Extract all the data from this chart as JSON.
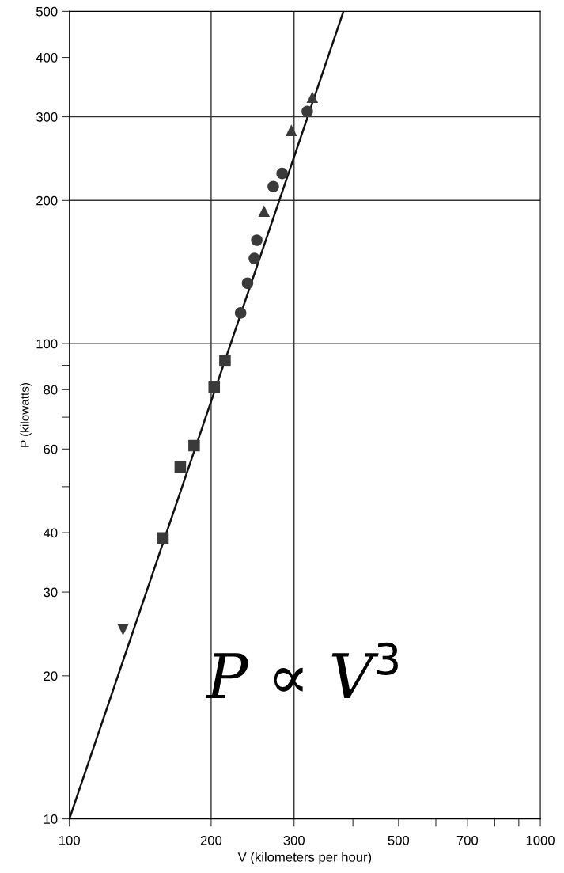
{
  "chart_data": {
    "type": "scatter",
    "xlabel": "V (kilometers per hour)",
    "ylabel": "P (kilowatts)",
    "log": "xy",
    "grid": false,
    "xlim": [
      100,
      1000
    ],
    "xticks": [
      100,
      200,
      300,
      {
        "value": 400,
        "label": null
      },
      500,
      {
        "value": 600,
        "label": null
      },
      700,
      {
        "value": 800,
        "label": null
      },
      {
        "value": 900,
        "label": null
      },
      1000
    ],
    "ylim": [
      10,
      500
    ],
    "yticks": [
      10,
      20,
      30,
      40,
      {
        "value": 50,
        "label": null
      },
      60,
      {
        "value": 70,
        "label": null
      },
      80,
      {
        "value": 90,
        "label": null
      },
      100,
      200,
      300,
      400,
      500
    ],
    "ref_lines": [
      {
        "axis": "x",
        "value": 200,
        "color": "#333333"
      },
      {
        "axis": "x",
        "value": 300,
        "color": "#333333"
      },
      {
        "axis": "y",
        "value": 100,
        "color": "#333333"
      },
      {
        "axis": "y",
        "value": 200,
        "color": "#333333"
      },
      {
        "axis": "y",
        "value": 300,
        "color": "#333333"
      }
    ],
    "annotations": [
      "P ∝ V$^{3}$"
    ],
    "series": [
      {
        "type": "line",
        "color": "#111111",
        "marker": "none",
        "line_style": "solid",
        "x": [
          100,
          382
        ],
        "values": [
          10,
          500
        ]
      },
      {
        "marker": "triangle",
        "color": "#3a3a3a",
        "x": [
          328,
          296,
          259
        ],
        "values": [
          330,
          281,
          190
        ]
      },
      {
        "marker": "circle",
        "color": "#3a3a3a",
        "x": [
          320,
          283,
          271,
          250,
          247,
          239,
          231
        ],
        "values": [
          308,
          228,
          214,
          165,
          151,
          134,
          116
        ]
      },
      {
        "marker": "square",
        "color": "#3a3a3a",
        "x": [
          214,
          203,
          184,
          172,
          158
        ],
        "values": [
          92,
          81,
          61,
          55,
          39
        ]
      },
      {
        "marker": "triangle_down",
        "color": "#3a3a3a",
        "x": [
          130
        ],
        "values": [
          25
        ]
      }
    ]
  }
}
